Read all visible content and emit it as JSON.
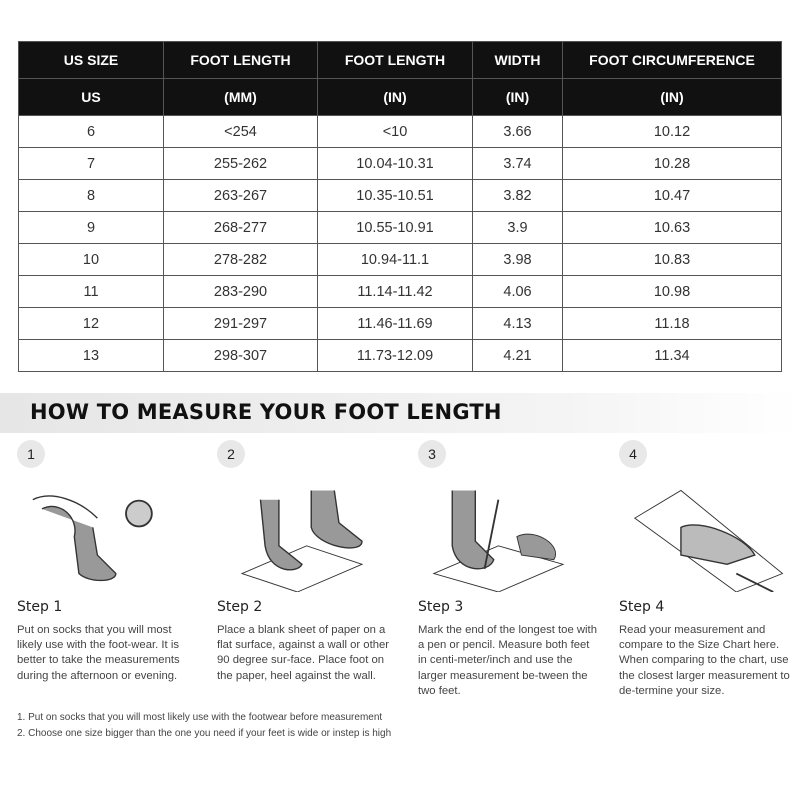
{
  "table": {
    "header1": [
      "US SIZE",
      "FOOT LENGTH",
      "FOOT LENGTH",
      "WIDTH",
      "FOOT CIRCUMFERENCE"
    ],
    "header2": [
      "US",
      "(MM)",
      "(IN)",
      "(IN)",
      "(IN)"
    ],
    "rows": [
      [
        "6",
        "<254",
        "<10",
        "3.66",
        "10.12"
      ],
      [
        "7",
        "255-262",
        "10.04-10.31",
        "3.74",
        "10.28"
      ],
      [
        "8",
        "263-267",
        "10.35-10.51",
        "3.82",
        "10.47"
      ],
      [
        "9",
        "268-277",
        "10.55-10.91",
        "3.9",
        "10.63"
      ],
      [
        "10",
        "278-282",
        "10.94-11.1",
        "3.98",
        "10.83"
      ],
      [
        "11",
        "283-290",
        "11.14-11.42",
        "4.06",
        "10.98"
      ],
      [
        "12",
        "291-297",
        "11.46-11.69",
        "4.13",
        "11.18"
      ],
      [
        "13",
        "298-307",
        "11.73-12.09",
        "4.21",
        "11.34"
      ]
    ]
  },
  "guide": {
    "title": "HOW TO MEASURE YOUR FOOT LENGTH",
    "steps": [
      {
        "number": "1",
        "label": "Step 1",
        "text": "Put on socks that you will most likely use with the foot-wear. It is better to take the measurements during the afternoon or evening."
      },
      {
        "number": "2",
        "label": "Step 2",
        "text": "Place a blank sheet of paper on a flat surface, against a wall or other 90 degree sur-face. Place foot on the paper, heel against the wall."
      },
      {
        "number": "3",
        "label": "Step 3",
        "text": "Mark the end of the longest toe with a pen or pencil. Measure both feet in centi-meter/inch and use the larger measurement be-tween the two feet."
      },
      {
        "number": "4",
        "label": "Step 4",
        "text": "Read your measurement and compare to the Size Chart here. When comparing to the chart, use the closest larger measurement to de-termine your size."
      }
    ],
    "notes": [
      "1. Put on socks that you will most likely use with the footwear before measurement",
      "2. Choose one size bigger than the one you need if your feet is wide or instep is high"
    ]
  }
}
